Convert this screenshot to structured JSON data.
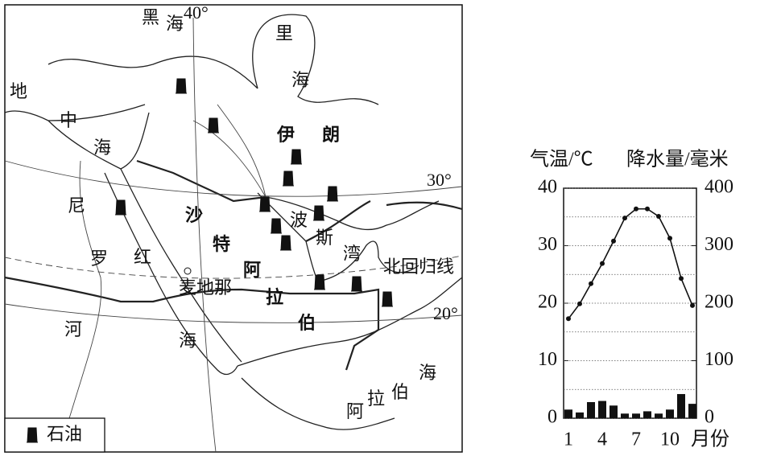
{
  "map": {
    "black_sea": [
      "黑",
      "海"
    ],
    "caspian_sea": [
      "里",
      "海"
    ],
    "mediterranean": [
      "地",
      "中",
      "海"
    ],
    "iran": [
      "伊",
      "朗"
    ],
    "nile": [
      "尼",
      "罗",
      "河"
    ],
    "red_sea": [
      "红",
      "海"
    ],
    "saudi_arabia": [
      "沙",
      "特",
      "阿",
      "拉",
      "伯"
    ],
    "persian_gulf": [
      "波",
      "斯",
      "湾"
    ],
    "medina": "麦地那",
    "arabian_sea": [
      "阿",
      "拉",
      "伯",
      "海"
    ],
    "tropic": "北回归线",
    "lat_30": "30°",
    "lat_20": "20°",
    "lon_40": "40°",
    "legend": "石油"
  },
  "chart_data": {
    "type": "combo",
    "ylabel": "气温/℃",
    "y2label": "降水量/毫米",
    "xlabel": "月份",
    "categories": [
      "1",
      null,
      null,
      "4",
      null,
      null,
      "7",
      null,
      null,
      "10",
      null,
      null
    ],
    "series": [
      {
        "type": "line",
        "axis": "y",
        "color": "#111111",
        "values": [
          17.3,
          19.9,
          23.4,
          26.9,
          30.8,
          34.8,
          36.4,
          36.4,
          35.1,
          31.3,
          24.3,
          19.6
        ]
      },
      {
        "type": "bar",
        "axis": "y2",
        "color": "#111111",
        "values": [
          15,
          10,
          28,
          30,
          22,
          8,
          8,
          12,
          8,
          15,
          42,
          25
        ]
      }
    ],
    "ylim": [
      0,
      40
    ],
    "yticks": [
      0,
      10,
      20,
      30,
      40
    ],
    "y2lim": [
      0,
      400
    ],
    "y2ticks": [
      0,
      100,
      200,
      300,
      400
    ],
    "minor_grid": [
      5,
      15,
      25,
      35
    ],
    "grid": true
  }
}
